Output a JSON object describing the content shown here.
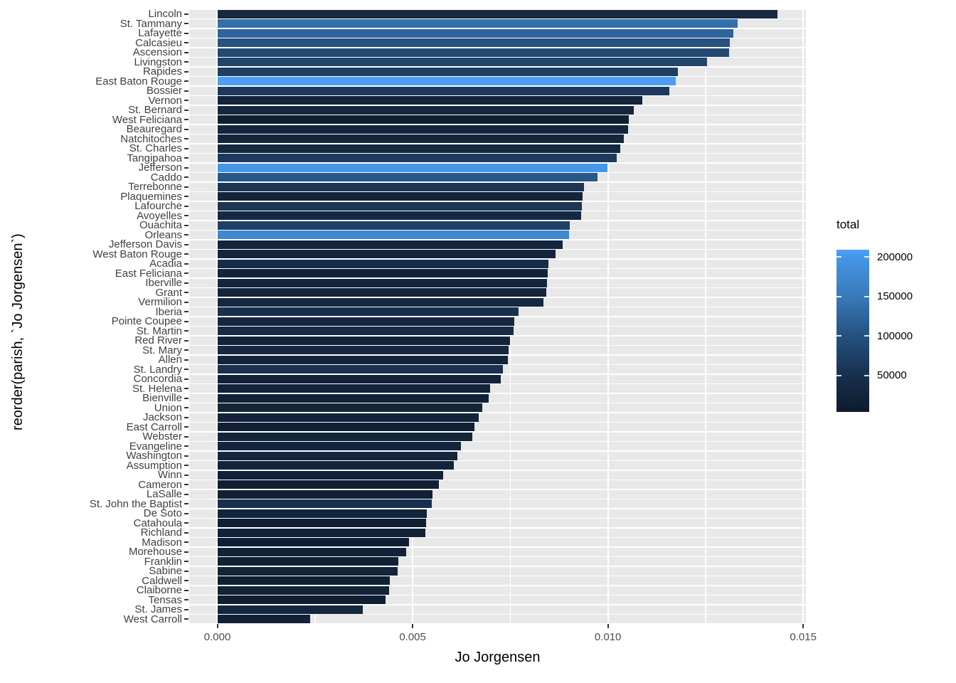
{
  "colors": {
    "figure_bg": "#ffffff",
    "panel_stripe": "#e8e8e8",
    "gridline": "#ffffff",
    "axis_text": "#4d4d4d",
    "title_text": "#000000",
    "tick_mark": "#333333"
  },
  "chart_data": {
    "type": "bar",
    "orientation": "horizontal",
    "title": "",
    "xlabel": "Jo Jorgensen",
    "ylabel": "reorder(parish, `Jo Jorgensen`)",
    "xlim": [
      -0.000721,
      0.01507
    ],
    "x_tick_values": [
      0,
      0.005,
      0.01,
      0.015
    ],
    "x_tick_labels": [
      "0.000",
      "0.005",
      "0.010",
      "0.015"
    ],
    "x_minor_tick_values": [
      0.0025,
      0.0075,
      0.0125
    ],
    "grid": true,
    "legend": {
      "title": "total",
      "position": "right",
      "tick_values": [
        200000,
        150000,
        100000,
        50000
      ],
      "tick_labels": [
        "200000",
        "150000",
        "100000",
        "50000"
      ],
      "gradient_stops": [
        {
          "pos": 0.0,
          "color": "#4fa1f3"
        },
        {
          "pos": 0.044,
          "color": "#4697ea"
        },
        {
          "pos": 0.288,
          "color": "#387ab8"
        },
        {
          "pos": 0.532,
          "color": "#24517f"
        },
        {
          "pos": 0.776,
          "color": "#17304e"
        },
        {
          "pos": 1.0,
          "color": "#0e1b2d"
        }
      ]
    },
    "bars": [
      {
        "parish": "Lincoln",
        "value": 0.01434,
        "color": "#16293f"
      },
      {
        "parish": "St. Tammany",
        "value": 0.01333,
        "color": "#3270ab"
      },
      {
        "parish": "Lafayette",
        "value": 0.01321,
        "color": "#2e649c"
      },
      {
        "parish": "Calcasieu",
        "value": 0.01312,
        "color": "#28527f"
      },
      {
        "parish": "Ascension",
        "value": 0.0131,
        "color": "#244a72"
      },
      {
        "parish": "Livingston",
        "value": 0.01253,
        "color": "#22456b"
      },
      {
        "parish": "Rapides",
        "value": 0.01179,
        "color": "#1f3f62"
      },
      {
        "parish": "East Baton Rouge",
        "value": 0.01173,
        "color": "#4d9ef2"
      },
      {
        "parish": "Bossier",
        "value": 0.01157,
        "color": "#1d3a5e"
      },
      {
        "parish": "Vernon",
        "value": 0.01089,
        "color": "#13253d"
      },
      {
        "parish": "St. Bernard",
        "value": 0.01066,
        "color": "#15273f"
      },
      {
        "parish": "West Feliciana",
        "value": 0.01053,
        "color": "#111f33"
      },
      {
        "parish": "Beauregard",
        "value": 0.01051,
        "color": "#14263e"
      },
      {
        "parish": "Natchitoches",
        "value": 0.01041,
        "color": "#14263c"
      },
      {
        "parish": "St. Charles",
        "value": 0.01032,
        "color": "#152840"
      },
      {
        "parish": "Tangipahoa",
        "value": 0.01022,
        "color": "#1d3a5e"
      },
      {
        "parish": "Jefferson",
        "value": 0.00998,
        "color": "#4697e8"
      },
      {
        "parish": "Caddo",
        "value": 0.00973,
        "color": "#275887"
      },
      {
        "parish": "Terrebonne",
        "value": 0.00939,
        "color": "#1c3655"
      },
      {
        "parish": "Plaquemines",
        "value": 0.00935,
        "color": "#13243b"
      },
      {
        "parish": "Lafourche",
        "value": 0.00934,
        "color": "#1c3655"
      },
      {
        "parish": "Avoyelles",
        "value": 0.00931,
        "color": "#152843"
      },
      {
        "parish": "Ouachita",
        "value": 0.00902,
        "color": "#204166"
      },
      {
        "parish": "Orleans",
        "value": 0.00901,
        "color": "#3e88d1"
      },
      {
        "parish": "Jefferson Davis",
        "value": 0.00884,
        "color": "#13253d"
      },
      {
        "parish": "West Baton Rouge",
        "value": 0.00865,
        "color": "#13253c"
      },
      {
        "parish": "Acadia",
        "value": 0.00847,
        "color": "#172c47"
      },
      {
        "parish": "East Feliciana",
        "value": 0.00846,
        "color": "#12243c"
      },
      {
        "parish": "Iberville",
        "value": 0.00844,
        "color": "#14263e"
      },
      {
        "parish": "Grant",
        "value": 0.00842,
        "color": "#12233a"
      },
      {
        "parish": "Vermilion",
        "value": 0.00835,
        "color": "#152841"
      },
      {
        "parish": "Iberia",
        "value": 0.00772,
        "color": "#18304d"
      },
      {
        "parish": "Pointe Coupee",
        "value": 0.0076,
        "color": "#15283f"
      },
      {
        "parish": "St. Martin",
        "value": 0.00758,
        "color": "#172c46"
      },
      {
        "parish": "Red River",
        "value": 0.0075,
        "color": "#132338"
      },
      {
        "parish": "St. Mary",
        "value": 0.00746,
        "color": "#15283f"
      },
      {
        "parish": "Allen",
        "value": 0.00744,
        "color": "#12243a"
      },
      {
        "parish": "St. Landry",
        "value": 0.00731,
        "color": "#1a3150"
      },
      {
        "parish": "Concordia",
        "value": 0.00725,
        "color": "#11223a"
      },
      {
        "parish": "St. Helena",
        "value": 0.00698,
        "color": "#112239"
      },
      {
        "parish": "Bienville",
        "value": 0.00694,
        "color": "#112138"
      },
      {
        "parish": "Union",
        "value": 0.00678,
        "color": "#132539"
      },
      {
        "parish": "Jackson",
        "value": 0.00669,
        "color": "#12233a"
      },
      {
        "parish": "East Carroll",
        "value": 0.00658,
        "color": "#101f34"
      },
      {
        "parish": "Webster",
        "value": 0.00652,
        "color": "#132639"
      },
      {
        "parish": "Evangeline",
        "value": 0.00624,
        "color": "#13253c"
      },
      {
        "parish": "Washington",
        "value": 0.00615,
        "color": "#14263e"
      },
      {
        "parish": "Assumption",
        "value": 0.00605,
        "color": "#12243b"
      },
      {
        "parish": "Winn",
        "value": 0.00578,
        "color": "#112138"
      },
      {
        "parish": "Cameron",
        "value": 0.00568,
        "color": "#101f33"
      },
      {
        "parish": "LaSalle",
        "value": 0.0055,
        "color": "#112036"
      },
      {
        "parish": "St. John the Baptist",
        "value": 0.00549,
        "color": "#183050"
      },
      {
        "parish": "De Soto",
        "value": 0.00536,
        "color": "#122439"
      },
      {
        "parish": "Catahoula",
        "value": 0.00534,
        "color": "#101f34"
      },
      {
        "parish": "Richland",
        "value": 0.00532,
        "color": "#112137"
      },
      {
        "parish": "Madison",
        "value": 0.00491,
        "color": "#101e33"
      },
      {
        "parish": "Morehouse",
        "value": 0.00483,
        "color": "#122339"
      },
      {
        "parish": "Franklin",
        "value": 0.00463,
        "color": "#112137"
      },
      {
        "parish": "Sabine",
        "value": 0.00461,
        "color": "#132539"
      },
      {
        "parish": "Caldwell",
        "value": 0.00441,
        "color": "#101f34"
      },
      {
        "parish": "Claiborne",
        "value": 0.00439,
        "color": "#122238"
      },
      {
        "parish": "Tensas",
        "value": 0.0043,
        "color": "#0f1e32"
      },
      {
        "parish": "St. James",
        "value": 0.00372,
        "color": "#142741"
      },
      {
        "parish": "West Carroll",
        "value": 0.00237,
        "color": "#112137"
      }
    ]
  }
}
